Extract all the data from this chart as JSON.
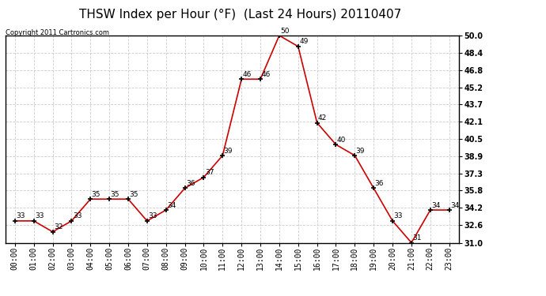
{
  "title": "THSW Index per Hour (°F)  (Last 24 Hours) 20110407",
  "copyright": "Copyright 2011 Cartronics.com",
  "hours": [
    "00:00",
    "01:00",
    "02:00",
    "03:00",
    "04:00",
    "05:00",
    "06:00",
    "07:00",
    "08:00",
    "09:00",
    "10:00",
    "11:00",
    "12:00",
    "13:00",
    "14:00",
    "15:00",
    "16:00",
    "17:00",
    "18:00",
    "19:00",
    "20:00",
    "21:00",
    "22:00",
    "23:00"
  ],
  "values": [
    33,
    33,
    32,
    33,
    35,
    35,
    35,
    33,
    34,
    36,
    37,
    39,
    46,
    46,
    50,
    49,
    42,
    40,
    39,
    36,
    33,
    31,
    34,
    34
  ],
  "line_color": "#cc0000",
  "background_color": "#ffffff",
  "grid_color": "#cccccc",
  "ylim": [
    31.0,
    50.0
  ],
  "yticks": [
    31.0,
    32.6,
    34.2,
    35.8,
    37.3,
    38.9,
    40.5,
    42.1,
    43.7,
    45.2,
    46.8,
    48.4,
    50.0
  ],
  "title_fontsize": 11,
  "label_fontsize": 6.5,
  "tick_fontsize": 7,
  "copyright_fontsize": 6
}
